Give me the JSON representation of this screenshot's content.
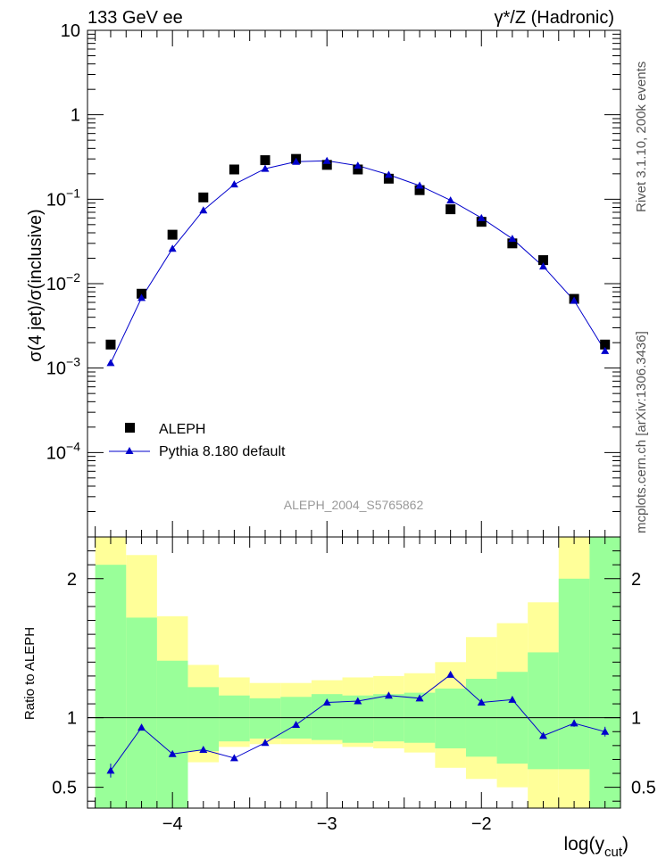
{
  "header": {
    "left": "133 GeV ee",
    "right": "γ*/Z (Hadronic)"
  },
  "side_labels": {
    "top": "Rivet 3.1.10, 200k events",
    "bottom": "mcplots.cern.ch [arXiv:1306.3436]"
  },
  "chart_data": [
    {
      "type": "scatter",
      "panel": "main",
      "title": "",
      "ylabel": "σ(4 jet)/σ(inclusive)",
      "ylabel_text": "σ(4 jet)/σ(inclusive)",
      "yscale": "log",
      "ylim": [
        1e-05,
        10
      ],
      "xlim": [
        -4.55,
        -1.1
      ],
      "yticks": [
        {
          "v": 0.0001,
          "base": "10",
          "exp": "−4"
        },
        {
          "v": 0.001,
          "base": "10",
          "exp": "−3"
        },
        {
          "v": 0.01,
          "base": "10",
          "exp": "−2"
        },
        {
          "v": 0.1,
          "base": "10",
          "exp": "−1"
        },
        {
          "v": 1,
          "base": "1",
          "exp": ""
        },
        {
          "v": 10,
          "base": "10",
          "exp": ""
        }
      ],
      "analysis_label": "ALEPH_2004_S5765862",
      "legend": {
        "placement": "lower-left",
        "entries": [
          "ALEPH",
          "Pythia 8.180 default"
        ]
      },
      "series": [
        {
          "name": "ALEPH",
          "marker": "square",
          "color": "#000000",
          "x": [
            -4.4,
            -4.2,
            -4.0,
            -3.8,
            -3.6,
            -3.4,
            -3.2,
            -3.0,
            -2.8,
            -2.6,
            -2.4,
            -2.2,
            -2.0,
            -1.8,
            -1.6,
            -1.4,
            -1.2
          ],
          "y": [
            0.0019,
            0.0076,
            0.038,
            0.105,
            0.225,
            0.29,
            0.3,
            0.255,
            0.225,
            0.175,
            0.128,
            0.076,
            0.054,
            0.03,
            0.019,
            0.0066,
            0.0019
          ]
        },
        {
          "name": "Pythia 8.180 default",
          "marker": "triangle",
          "color": "#0000cc",
          "x": [
            -4.4,
            -4.2,
            -4.0,
            -3.8,
            -3.6,
            -3.4,
            -3.2,
            -3.0,
            -2.8,
            -2.6,
            -2.4,
            -2.2,
            -2.0,
            -1.8,
            -1.6,
            -1.4,
            -1.2
          ],
          "y": [
            0.00115,
            0.0068,
            0.026,
            0.074,
            0.15,
            0.23,
            0.278,
            0.285,
            0.25,
            0.195,
            0.145,
            0.097,
            0.06,
            0.034,
            0.016,
            0.0063,
            0.0016
          ]
        }
      ]
    },
    {
      "type": "scatter",
      "panel": "ratio",
      "ylabel": "Ratio to ALEPH",
      "ylim": [
        0.35,
        2.3
      ],
      "xlim": [
        -4.55,
        -1.1
      ],
      "xlabel": "log(y_cut)",
      "xlabel_main": "log(y",
      "xlabel_sub": "cut",
      "xlabel_close": ")",
      "xticks": [
        {
          "v": -4,
          "label": "−4"
        },
        {
          "v": -3,
          "label": "−3"
        },
        {
          "v": -2,
          "label": "−2"
        }
      ],
      "yticks": [
        {
          "v": 0.5,
          "label": "0.5"
        },
        {
          "v": 1,
          "label": "1"
        },
        {
          "v": 2,
          "label": "2"
        }
      ],
      "reference_line": 1,
      "bins": [
        {
          "lo": -4.5,
          "hi": -4.3,
          "g": [
            0.35,
            2.1
          ],
          "y": [
            0.35,
            2.3
          ]
        },
        {
          "lo": -4.3,
          "hi": -4.1,
          "g": [
            0.35,
            1.72
          ],
          "y": [
            0.35,
            2.17
          ]
        },
        {
          "lo": -4.1,
          "hi": -3.9,
          "g": [
            0.35,
            1.41
          ],
          "y": [
            0.35,
            1.73
          ]
        },
        {
          "lo": -3.9,
          "hi": -3.7,
          "g": [
            0.76,
            1.22
          ],
          "y": [
            0.68,
            1.38
          ]
        },
        {
          "lo": -3.7,
          "hi": -3.5,
          "g": [
            0.83,
            1.16
          ],
          "y": [
            0.79,
            1.29
          ]
        },
        {
          "lo": -3.5,
          "hi": -3.3,
          "g": [
            0.85,
            1.14
          ],
          "y": [
            0.81,
            1.25
          ]
        },
        {
          "lo": -3.3,
          "hi": -3.1,
          "g": [
            0.85,
            1.15
          ],
          "y": [
            0.81,
            1.25
          ]
        },
        {
          "lo": -3.1,
          "hi": -2.9,
          "g": [
            0.84,
            1.17
          ],
          "y": [
            0.81,
            1.27
          ]
        },
        {
          "lo": -2.9,
          "hi": -2.7,
          "g": [
            0.82,
            1.16
          ],
          "y": [
            0.79,
            1.29
          ]
        },
        {
          "lo": -2.7,
          "hi": -2.5,
          "g": [
            0.83,
            1.17
          ],
          "y": [
            0.78,
            1.3
          ]
        },
        {
          "lo": -2.5,
          "hi": -2.3,
          "g": [
            0.82,
            1.18
          ],
          "y": [
            0.75,
            1.32
          ]
        },
        {
          "lo": -2.3,
          "hi": -2.1,
          "g": [
            0.78,
            1.21
          ],
          "y": [
            0.64,
            1.4
          ]
        },
        {
          "lo": -2.1,
          "hi": -1.9,
          "g": [
            0.72,
            1.28
          ],
          "y": [
            0.56,
            1.58
          ]
        },
        {
          "lo": -1.9,
          "hi": -1.7,
          "g": [
            0.67,
            1.33
          ],
          "y": [
            0.5,
            1.68
          ]
        },
        {
          "lo": -1.7,
          "hi": -1.5,
          "g": [
            0.63,
            1.47
          ],
          "y": [
            0.35,
            1.83
          ]
        },
        {
          "lo": -1.5,
          "hi": -1.3,
          "g": [
            0.63,
            2.0
          ],
          "y": [
            0.35,
            2.3
          ]
        },
        {
          "lo": -1.3,
          "hi": -1.1,
          "g": [
            0.35,
            2.3
          ],
          "y": [
            0.35,
            2.3
          ]
        }
      ],
      "series": [
        {
          "name": "Pythia 8.180 default / ALEPH",
          "color": "#0000cc",
          "x": [
            -4.4,
            -4.2,
            -4.0,
            -3.8,
            -3.6,
            -3.4,
            -3.2,
            -3.0,
            -2.8,
            -2.6,
            -2.4,
            -2.2,
            -2.0,
            -1.8,
            -1.6,
            -1.4,
            -1.2
          ],
          "y": [
            0.62,
            0.93,
            0.74,
            0.77,
            0.71,
            0.82,
            0.95,
            1.11,
            1.12,
            1.16,
            1.14,
            1.31,
            1.11,
            1.13,
            0.87,
            0.96,
            0.9
          ],
          "err": [
            0.05,
            0.015,
            0.015,
            0.01,
            0.01,
            0.01,
            0.01,
            0.01,
            0.01,
            0.01,
            0.01,
            0.015,
            0.015,
            0.02,
            0.02,
            0.025,
            0.035
          ]
        }
      ]
    }
  ]
}
